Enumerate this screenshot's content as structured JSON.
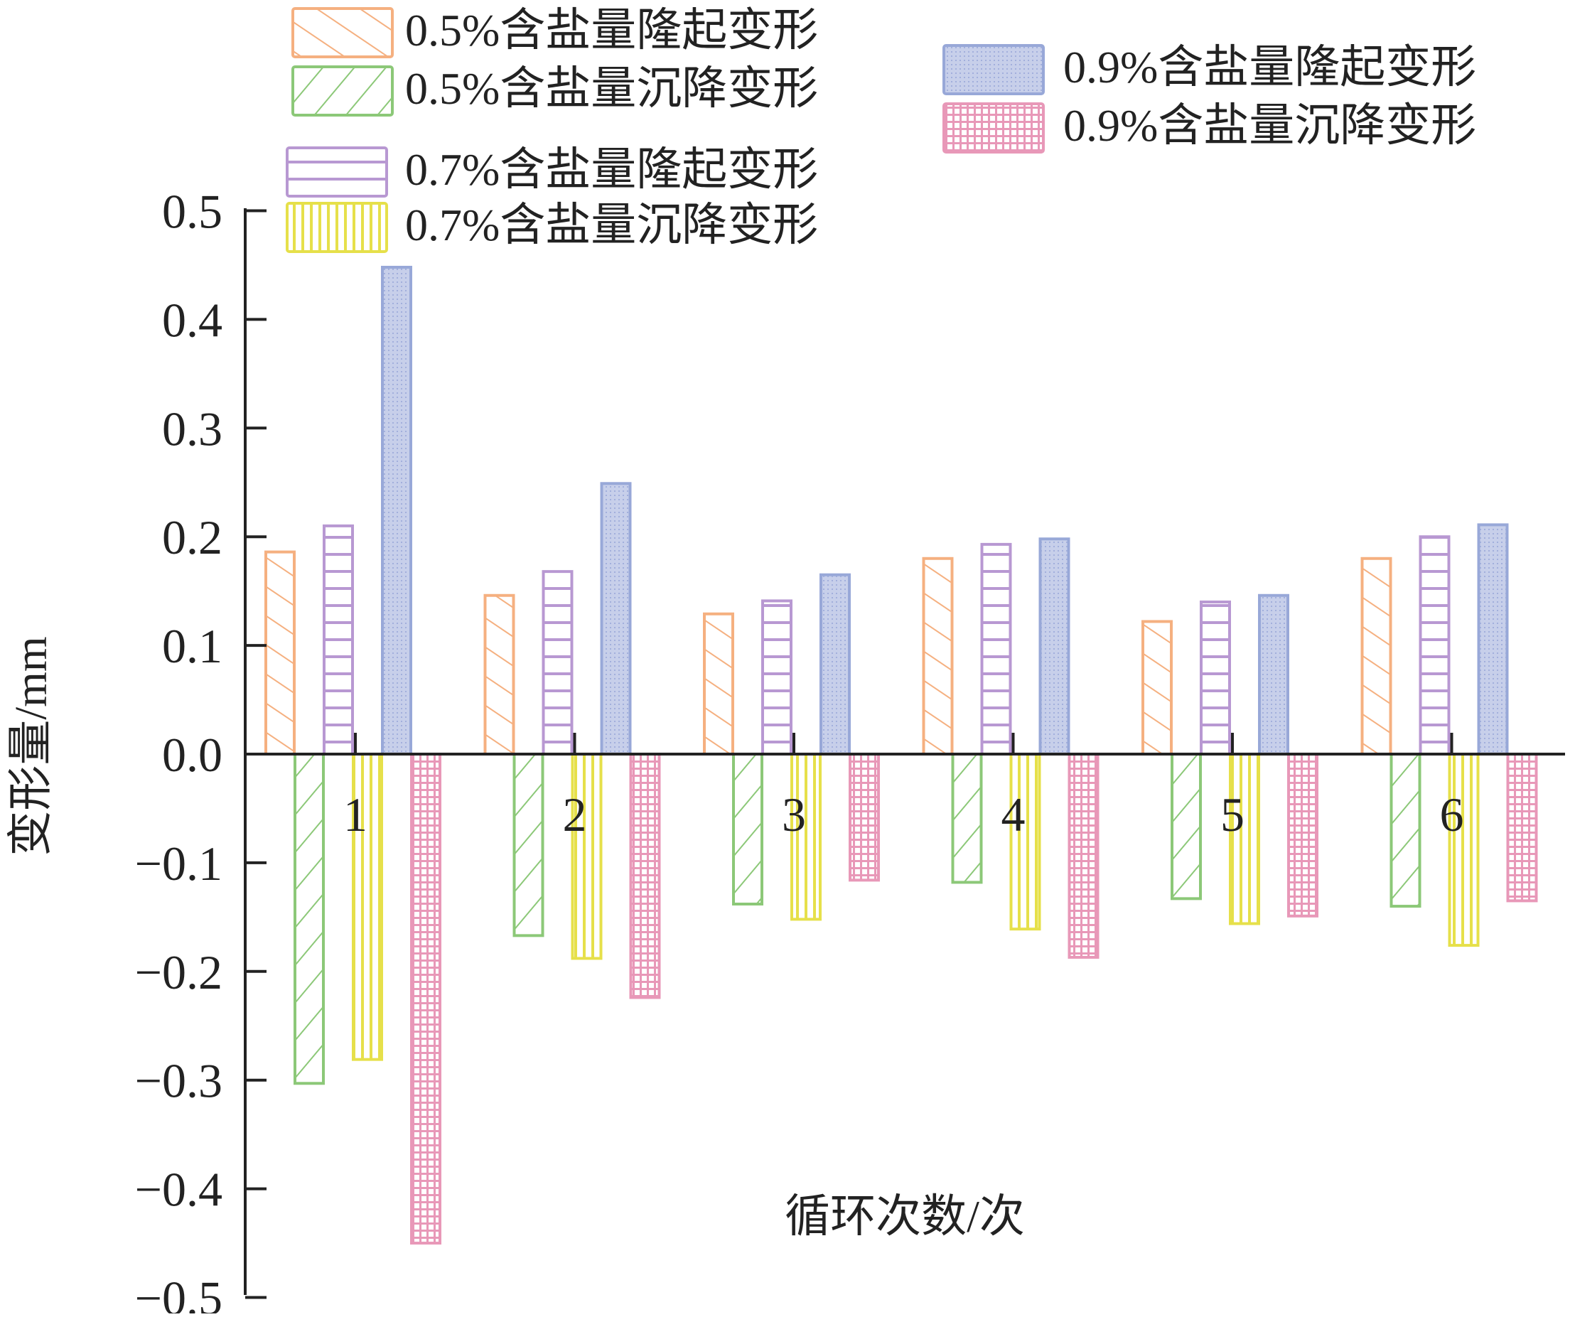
{
  "chart_data": {
    "type": "bar",
    "xlabel": "循环次数/次",
    "ylabel": "变形量/mm",
    "ylim": [
      -0.5,
      0.5
    ],
    "yticks": [
      "0.5",
      "0.4",
      "0.3",
      "0.2",
      "0.1",
      "0.0",
      "−0.1",
      "−0.2",
      "−0.3",
      "−0.4",
      "−0.5"
    ],
    "ytick_values": [
      0.5,
      0.4,
      0.3,
      0.2,
      0.1,
      0.0,
      -0.1,
      -0.2,
      -0.3,
      -0.4,
      -0.5
    ],
    "categories": [
      "1",
      "2",
      "3",
      "4",
      "5",
      "6"
    ],
    "grid": false,
    "legend_position": "top",
    "series": [
      {
        "name": "0.5%含盐量隆起变形",
        "pattern": "diag-up",
        "color": "#f5b080",
        "values": [
          0.186,
          0.146,
          0.129,
          0.18,
          0.122,
          0.18
        ]
      },
      {
        "name": "0.5%含盐量沉降变形",
        "pattern": "diag-down",
        "color": "#8cc878",
        "values": [
          -0.303,
          -0.167,
          -0.138,
          -0.118,
          -0.133,
          -0.14
        ]
      },
      {
        "name": "0.7%含盐量隆起变形",
        "pattern": "horizontal",
        "color": "#b898d2",
        "values": [
          0.21,
          0.168,
          0.141,
          0.193,
          0.14,
          0.2
        ]
      },
      {
        "name": "0.7%含盐量沉降变形",
        "pattern": "vertical",
        "color": "#e6e04a",
        "values": [
          -0.281,
          -0.188,
          -0.152,
          -0.161,
          -0.156,
          -0.176
        ]
      },
      {
        "name": "0.9%含盐量隆起变形",
        "pattern": "solid",
        "color": "#98a8d8",
        "values": [
          0.448,
          0.249,
          0.165,
          0.198,
          0.146,
          0.211
        ]
      },
      {
        "name": "0.9%含盐量沉降变形",
        "pattern": "grid",
        "color": "#e898b8",
        "values": [
          -0.45,
          -0.224,
          -0.116,
          -0.187,
          -0.149,
          -0.135
        ]
      }
    ]
  }
}
